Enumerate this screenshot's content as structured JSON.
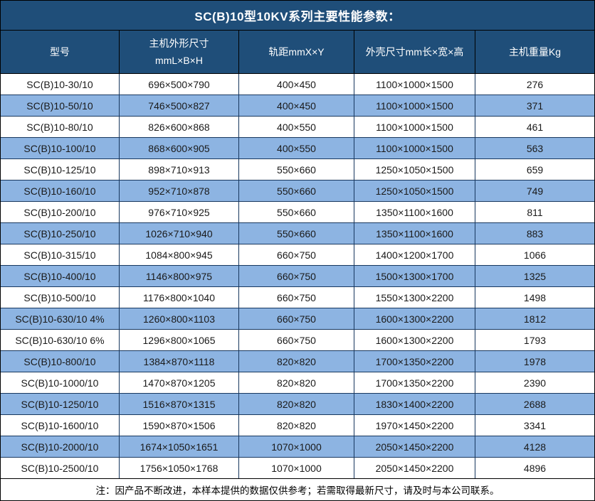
{
  "title": "SC(B)10型10KV系列主要性能参数：",
  "footnote": "注：因产品不断改进，本样本提供的数据仅供参考；若需取得最新尺寸，请及时与本公司联系。",
  "colors": {
    "header_bg": "#1F4E79",
    "alt_row_bg": "#8DB4E2",
    "row_bg": "#FFFFFF",
    "grid_line": "#17375E",
    "outer_border": "#000000",
    "header_text": "#FFFFFF",
    "body_text": "#1A1A1A"
  },
  "table": {
    "headers": [
      "型号",
      "主机外形尺寸\nmmL×B×H",
      "轨距mmX×Y",
      "外壳尺寸mm长×宽×高",
      "主机重量Kg"
    ],
    "rows": [
      [
        "SC(B)10-30/10",
        "696×500×790",
        "400×450",
        "1100×1000×1500",
        "276"
      ],
      [
        "SC(B)10-50/10",
        "746×500×827",
        "400×450",
        "1100×1000×1500",
        "371"
      ],
      [
        "SC(B)10-80/10",
        "826×600×868",
        "400×550",
        "1100×1000×1500",
        "461"
      ],
      [
        "SC(B)10-100/10",
        "868×600×905",
        "400×550",
        "1100×1000×1500",
        "563"
      ],
      [
        "SC(B)10-125/10",
        "898×710×913",
        "550×660",
        "1250×1050×1500",
        "659"
      ],
      [
        "SC(B)10-160/10",
        "952×710×878",
        "550×660",
        "1250×1050×1500",
        "749"
      ],
      [
        "SC(B)10-200/10",
        "976×710×925",
        "550×660",
        "1350×1100×1600",
        "811"
      ],
      [
        "SC(B)10-250/10",
        "1026×710×940",
        "550×660",
        "1350×1100×1600",
        "883"
      ],
      [
        "SC(B)10-315/10",
        "1084×800×945",
        "660×750",
        "1400×1200×1700",
        "1066"
      ],
      [
        "SC(B)10-400/10",
        "1146×800×975",
        "660×750",
        "1500×1300×1700",
        "1325"
      ],
      [
        "SC(B)10-500/10",
        "1176×800×1040",
        "660×750",
        "1550×1300×2200",
        "1498"
      ],
      [
        "SC(B)10-630/10 4%",
        "1260×800×1103",
        "660×750",
        "1600×1300×2200",
        "1812"
      ],
      [
        "SC(B)10-630/10 6%",
        "1296×800×1065",
        "660×750",
        "1600×1300×2200",
        "1793"
      ],
      [
        "SC(B)10-800/10",
        "1384×870×1118",
        "820×820",
        "1700×1350×2200",
        "1978"
      ],
      [
        "SC(B)10-1000/10",
        "1470×870×1205",
        "820×820",
        "1700×1350×2200",
        "2390"
      ],
      [
        "SC(B)10-1250/10",
        "1516×870×1315",
        "820×820",
        "1830×1400×2200",
        "2688"
      ],
      [
        "SC(B)10-1600/10",
        "1590×870×1506",
        "820×820",
        "1970×1450×2200",
        "3341"
      ],
      [
        "SC(B)10-2000/10",
        "1674×1050×1651",
        "1070×1000",
        "2050×1450×2200",
        "4128"
      ],
      [
        "SC(B)10-2500/10",
        "1756×1050×1768",
        "1070×1000",
        "2050×1450×2200",
        "4896"
      ]
    ]
  }
}
